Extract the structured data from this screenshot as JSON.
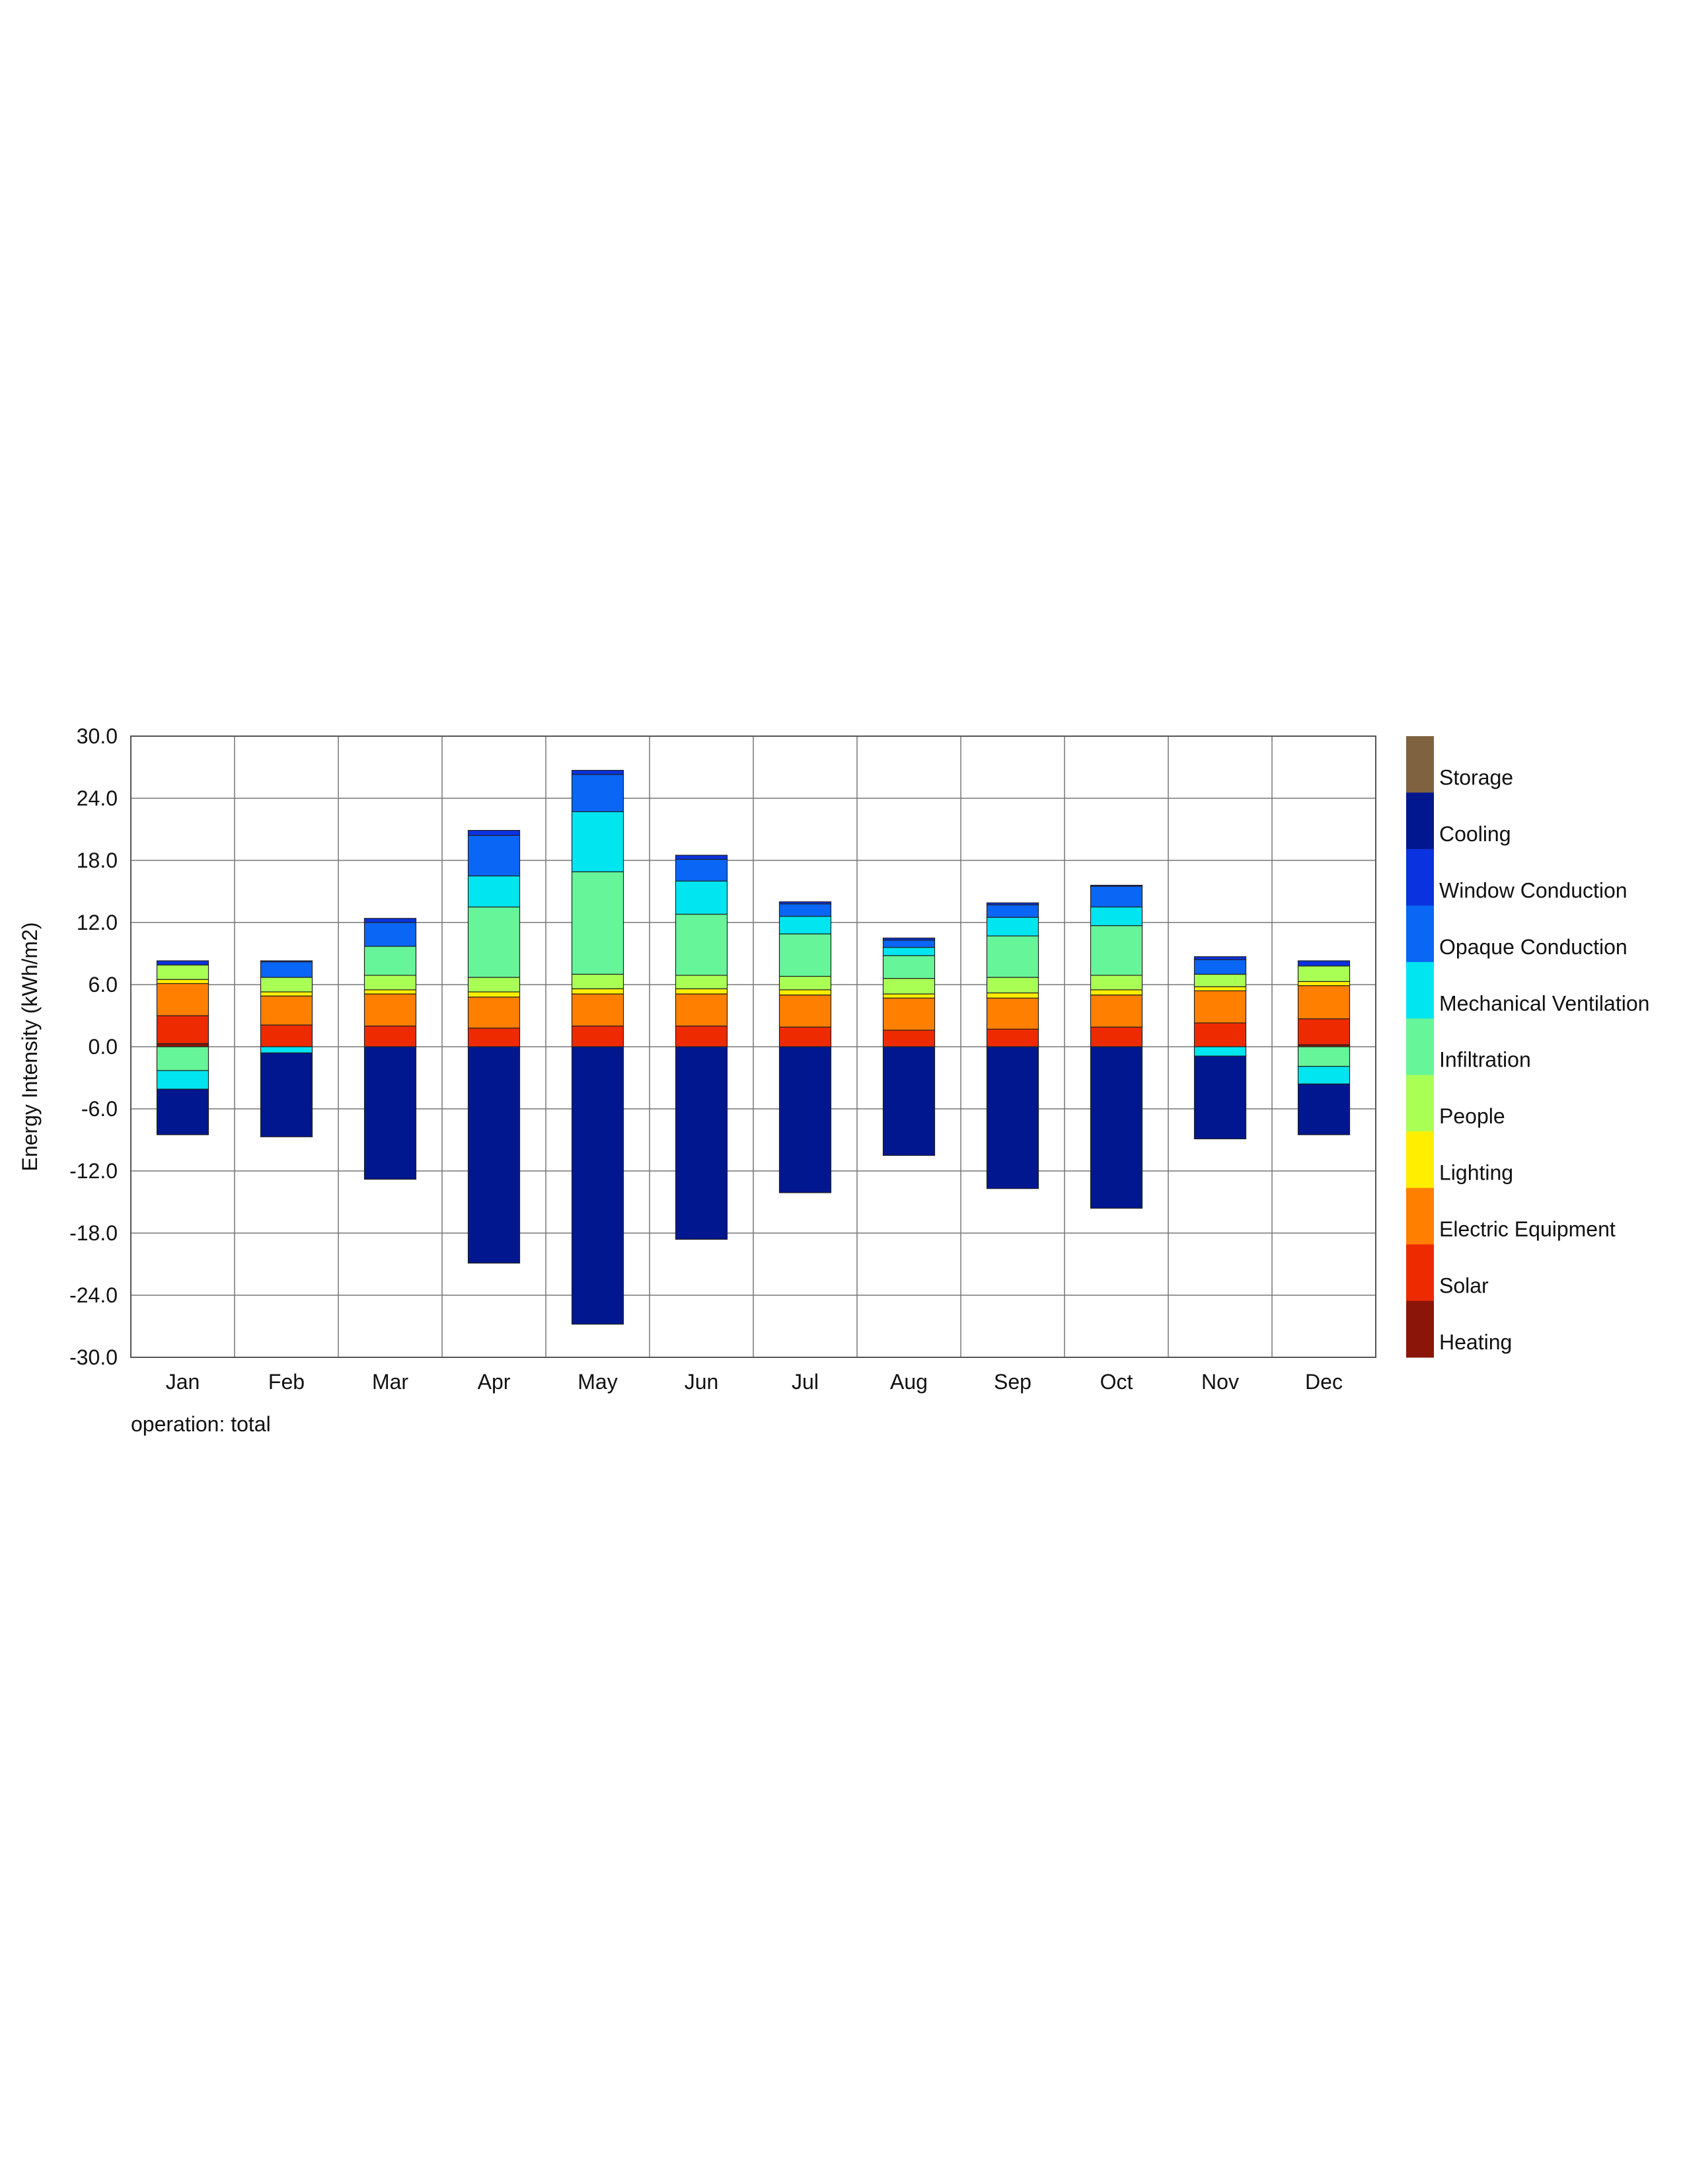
{
  "chart_data": {
    "type": "bar",
    "stacked": true,
    "ylabel": "Energy Intensity (kWh/m2)",
    "xlabel": "",
    "note": "operation: total",
    "ylim": [
      -30,
      30
    ],
    "yticks": [
      "30.0",
      "24.0",
      "18.0",
      "12.0",
      "6.0",
      "0.0",
      "-6.0",
      "-12.0",
      "-18.0",
      "-24.0",
      "-30.0"
    ],
    "grid": true,
    "legend_position": "right",
    "categories": [
      "Jan",
      "Feb",
      "Mar",
      "Apr",
      "May",
      "Jun",
      "Jul",
      "Aug",
      "Sep",
      "Oct",
      "Nov",
      "Dec"
    ],
    "series": [
      {
        "name": "Heating",
        "color": "#8b1508",
        "values": [
          0.3,
          0,
          0,
          0,
          0,
          0,
          0,
          0,
          0,
          0,
          0,
          0.2
        ]
      },
      {
        "name": "Solar",
        "color": "#ee2a00",
        "values": [
          2.7,
          2.1,
          2.0,
          1.8,
          2.0,
          2.0,
          1.9,
          1.6,
          1.7,
          1.9,
          2.3,
          2.5
        ]
      },
      {
        "name": "Electric Equipment",
        "color": "#ff7f00",
        "values": [
          3.1,
          2.8,
          3.1,
          3.0,
          3.1,
          3.1,
          3.1,
          3.1,
          3.0,
          3.1,
          3.1,
          3.2
        ]
      },
      {
        "name": "Lighting",
        "color": "#ffee00",
        "values": [
          0.4,
          0.4,
          0.4,
          0.5,
          0.5,
          0.5,
          0.5,
          0.4,
          0.5,
          0.5,
          0.4,
          0.4
        ]
      },
      {
        "name": "People",
        "color": "#aaff55",
        "values": [
          1.4,
          1.4,
          1.4,
          1.4,
          1.4,
          1.3,
          1.3,
          1.5,
          1.5,
          1.4,
          1.2,
          1.5
        ]
      },
      {
        "name": "Infiltration",
        "color": "#66f598",
        "values": [
          -2.3,
          0,
          2.8,
          6.8,
          9.9,
          5.9,
          4.1,
          2.2,
          4.0,
          4.8,
          0,
          -1.9
        ]
      },
      {
        "name": "Mechanical Ventilation",
        "color": "#00e5f0",
        "values": [
          -1.8,
          -0.6,
          0,
          3.0,
          5.8,
          3.2,
          1.7,
          0.8,
          1.8,
          1.8,
          -0.9,
          -1.7
        ]
      },
      {
        "name": "Opaque Conduction",
        "color": "#0a66f5",
        "values": [
          0,
          1.5,
          2.3,
          3.9,
          3.6,
          2.1,
          1.2,
          0.7,
          1.2,
          2.0,
          1.4,
          0
        ]
      },
      {
        "name": "Window Conduction",
        "color": "#0a32df",
        "values": [
          0.4,
          0.1,
          0.4,
          0.5,
          0.4,
          0.4,
          0.2,
          0.2,
          0.2,
          0.1,
          0.3,
          0.5
        ]
      },
      {
        "name": "Cooling",
        "color": "#00178f",
        "values": [
          -4.4,
          -8.1,
          -12.8,
          -20.9,
          -26.8,
          -18.6,
          -14.1,
          -10.5,
          -13.7,
          -15.6,
          -8.0,
          -4.9
        ]
      },
      {
        "name": "Storage",
        "color": "#7f623f",
        "values": [
          0,
          0,
          0,
          0,
          0,
          0,
          0,
          0,
          0,
          0,
          0,
          0
        ]
      }
    ]
  }
}
